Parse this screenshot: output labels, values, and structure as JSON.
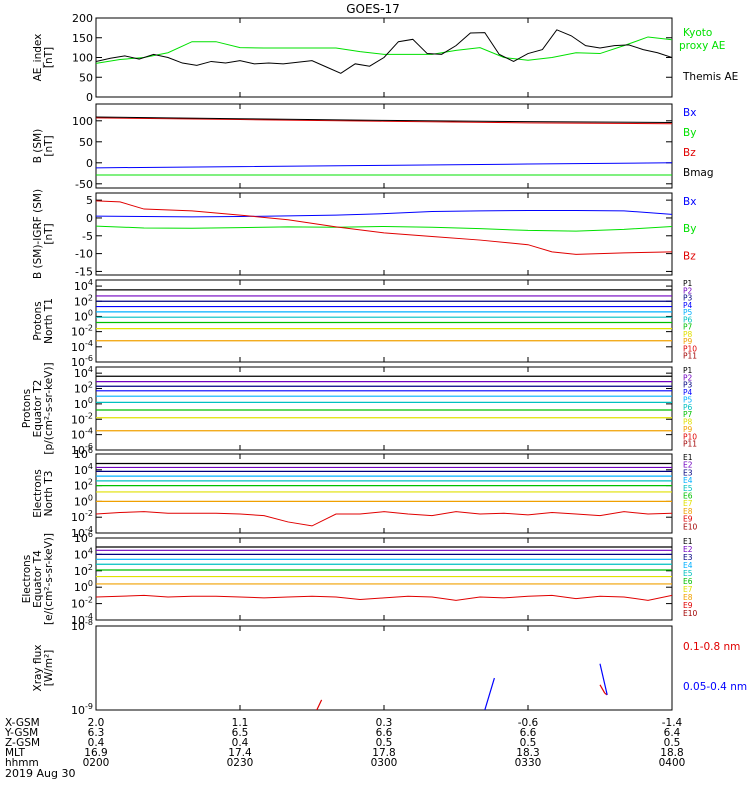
{
  "title": "GOES-17",
  "colors": {
    "black": "#000000",
    "green": "#00e000",
    "blue": "#0000ff",
    "red": "#e00000",
    "navy": "#000080",
    "purple": "#7000c0",
    "cyan": "#00b0ff",
    "teal": "#00c0c0",
    "seafoam": "#40e0a0",
    "lime": "#00c000",
    "yellow": "#e0e000",
    "orange": "#f0a000",
    "darkred": "#a00000"
  },
  "x_axis": {
    "hhmm_ticks": [
      "0200",
      "0230",
      "0300",
      "0330",
      "0400"
    ],
    "rows": [
      {
        "label": "X-GSM",
        "values": [
          "2.0",
          "1.1",
          "0.3",
          "-0.6",
          "-1.4"
        ]
      },
      {
        "label": "Y-GSM",
        "values": [
          "6.3",
          "6.5",
          "6.6",
          "6.6",
          "6.4"
        ]
      },
      {
        "label": "Z-GSM",
        "values": [
          "0.4",
          "0.4",
          "0.5",
          "0.5",
          "0.5"
        ]
      },
      {
        "label": "MLT",
        "values": [
          "16.9",
          "17.4",
          "17.8",
          "18.3",
          "18.8"
        ]
      },
      {
        "label": "hhmm",
        "values": [
          "0200",
          "0230",
          "0300",
          "0330",
          "0400"
        ]
      }
    ],
    "date": "2019 Aug 30"
  },
  "chart_data": [
    {
      "type": "line",
      "ylabel": [
        "AE_index",
        "[nT]"
      ],
      "ylim": [
        0,
        200
      ],
      "yticks": [
        "0",
        "50",
        "100",
        "150",
        "200"
      ],
      "series": [
        {
          "name": "Kyoto proxy AE",
          "color": "#00e000",
          "x": [
            0,
            5,
            10,
            15,
            20,
            25,
            30,
            35,
            40,
            45,
            50,
            55,
            60,
            65,
            70,
            75,
            80,
            85,
            90,
            95,
            100,
            105,
            110,
            115,
            120
          ],
          "y": [
            85,
            95,
            100,
            112,
            140,
            140,
            125,
            124,
            124,
            124,
            124,
            115,
            108,
            108,
            108,
            118,
            125,
            100,
            93,
            100,
            112,
            110,
            130,
            152,
            145
          ]
        },
        {
          "name": "Themis AE",
          "color": "#000000",
          "x": [
            0,
            3,
            6,
            9,
            12,
            15,
            18,
            21,
            24,
            27,
            30,
            33,
            36,
            39,
            42,
            45,
            48,
            51,
            54,
            57,
            60,
            63,
            66,
            69,
            72,
            75,
            78,
            81,
            84,
            87,
            90,
            93,
            96,
            99,
            102,
            105,
            108,
            111,
            114,
            117,
            120
          ],
          "y": [
            90,
            98,
            104,
            96,
            108,
            100,
            86,
            80,
            90,
            86,
            92,
            84,
            86,
            84,
            88,
            92,
            76,
            60,
            84,
            78,
            100,
            140,
            146,
            110,
            108,
            130,
            162,
            163,
            108,
            90,
            110,
            120,
            170,
            155,
            130,
            124,
            130,
            132,
            120,
            112,
            100
          ]
        }
      ]
    },
    {
      "type": "line",
      "ylabel": [
        "B (SM)",
        "[nT]"
      ],
      "ylim": [
        -60,
        140
      ],
      "yticks": [
        "-50",
        "0",
        "50",
        "100"
      ],
      "series": [
        {
          "name": "Bx",
          "color": "#0000ff",
          "x": [
            0,
            30,
            60,
            90,
            120
          ],
          "y": [
            -12,
            -9,
            -6,
            -3,
            0
          ]
        },
        {
          "name": "By",
          "color": "#00e000",
          "x": [
            0,
            30,
            60,
            90,
            120
          ],
          "y": [
            -29,
            -29,
            -29,
            -29,
            -29
          ]
        },
        {
          "name": "Bz",
          "color": "#e00000",
          "x": [
            0,
            30,
            60,
            90,
            120
          ],
          "y": [
            107,
            103,
            99,
            95,
            93
          ]
        },
        {
          "name": "Bmag",
          "color": "#000000",
          "x": [
            0,
            30,
            60,
            90,
            120
          ],
          "y": [
            109,
            105,
            101,
            98,
            96
          ]
        }
      ]
    },
    {
      "type": "line",
      "ylabel": [
        "B (SM)-IGRF (SM)",
        "[nT]"
      ],
      "ylim": [
        -16,
        7
      ],
      "yticks": [
        "-15",
        "-10",
        "-5",
        "0",
        "5"
      ],
      "series": [
        {
          "name": "Bx",
          "color": "#0000ff",
          "x": [
            0,
            10,
            20,
            30,
            40,
            50,
            60,
            70,
            80,
            90,
            100,
            110,
            120
          ],
          "y": [
            0.5,
            0.4,
            0.3,
            0.4,
            0.6,
            0.8,
            1.2,
            1.8,
            2.0,
            2.1,
            2.1,
            2.0,
            1.0
          ]
        },
        {
          "name": "By",
          "color": "#00e000",
          "x": [
            0,
            10,
            20,
            30,
            40,
            50,
            60,
            70,
            80,
            90,
            100,
            110,
            120
          ],
          "y": [
            -2.3,
            -2.8,
            -2.9,
            -2.7,
            -2.5,
            -2.6,
            -2.4,
            -2.6,
            -3.0,
            -3.5,
            -3.7,
            -3.2,
            -2.4
          ]
        },
        {
          "name": "Bz",
          "color": "#e00000",
          "x": [
            0,
            5,
            10,
            20,
            30,
            40,
            50,
            60,
            70,
            80,
            90,
            95,
            100,
            110,
            120
          ],
          "y": [
            4.8,
            4.5,
            2.5,
            2.0,
            0.8,
            -0.5,
            -2.5,
            -4.2,
            -5.2,
            -6.2,
            -7.5,
            -9.5,
            -10.2,
            -9.8,
            -9.5
          ]
        }
      ]
    },
    {
      "type": "line",
      "ylabel": [
        "Protons",
        "North T1"
      ],
      "scale": "log",
      "ylim_exp": [
        -6,
        4.8
      ],
      "yticks": [
        "10^4",
        "10^2",
        "10^0",
        "10^-2",
        "10^-4",
        "10^-6"
      ],
      "series": [
        {
          "name": "P1",
          "color": "#000000",
          "log10": 3.5
        },
        {
          "name": "P2",
          "color": "#7000c0",
          "log10": 2.7
        },
        {
          "name": "P3",
          "color": "#000080",
          "log10": 2.0
        },
        {
          "name": "P4",
          "color": "#0000ff",
          "log10": 1.3
        },
        {
          "name": "P5",
          "color": "#00b0ff",
          "log10": 0.6
        },
        {
          "name": "P6",
          "color": "#00c0c0",
          "log10": -0.1
        },
        {
          "name": "P7",
          "color": "#00c000",
          "log10": -0.8
        },
        {
          "name": "P8",
          "color": "#e0e000",
          "log10": -1.6
        },
        {
          "name": "P9",
          "color": "#f0a000",
          "log10": -3.2
        },
        {
          "name": "P10",
          "color": "#e00000",
          "log10": null
        },
        {
          "name": "P11",
          "color": "#a00000",
          "log10": null
        }
      ]
    },
    {
      "type": "line",
      "ylabel": [
        "Protons",
        "Equator T2",
        "[p/(cm²-s-sr-keV)]"
      ],
      "scale": "log",
      "ylim_exp": [
        -6,
        4.8
      ],
      "yticks": [
        "10^4",
        "10^2",
        "10^0",
        "10^-2",
        "10^-4",
        "10^-6"
      ],
      "series": [
        {
          "name": "P1",
          "color": "#000000",
          "log10": 3.6
        },
        {
          "name": "P2",
          "color": "#7000c0",
          "log10": 2.9
        },
        {
          "name": "P3",
          "color": "#000080",
          "log10": 2.3
        },
        {
          "name": "P4",
          "color": "#0000ff",
          "log10": 1.7
        },
        {
          "name": "P5",
          "color": "#00b0ff",
          "log10": 1.0
        },
        {
          "name": "P6",
          "color": "#00c0c0",
          "log10": 0.2
        },
        {
          "name": "P7",
          "color": "#00c000",
          "log10": -0.8
        },
        {
          "name": "P8",
          "color": "#e0e000",
          "log10": -1.8
        },
        {
          "name": "P9",
          "color": "#f0a000",
          "log10": -3.5
        },
        {
          "name": "P10",
          "color": "#e00000",
          "log10": null
        },
        {
          "name": "P11",
          "color": "#a00000",
          "log10": null
        }
      ]
    },
    {
      "type": "line",
      "ylabel": [
        "Electrons",
        "North T3"
      ],
      "scale": "log",
      "ylim_exp": [
        -4,
        6
      ],
      "yticks": [
        "10^6",
        "10^4",
        "10^2",
        "10^0",
        "10^-2",
        "10^-4"
      ],
      "series": [
        {
          "name": "E1",
          "color": "#000000",
          "log10": 4.8
        },
        {
          "name": "E2",
          "color": "#7000c0",
          "log10": 4.3
        },
        {
          "name": "E3",
          "color": "#000080",
          "log10": 3.8
        },
        {
          "name": "E4",
          "color": "#00b0ff",
          "log10": 3.2
        },
        {
          "name": "E5",
          "color": "#00c0c0",
          "log10": 2.6
        },
        {
          "name": "E6",
          "color": "#00c000",
          "log10": 2.0
        },
        {
          "name": "E7",
          "color": "#e0e000",
          "log10": 1.2
        },
        {
          "name": "E8",
          "color": "#f0a000",
          "log10": 0.0
        },
        {
          "name": "E9",
          "color": "#e00000",
          "x": [
            0,
            5,
            10,
            15,
            20,
            25,
            30,
            35,
            40,
            45,
            50,
            55,
            60,
            65,
            70,
            75,
            80,
            85,
            90,
            95,
            100,
            105,
            110,
            115,
            120
          ],
          "log10": [
            -1.6,
            -1.4,
            -1.3,
            -1.5,
            -1.5,
            -1.5,
            -1.6,
            -1.8,
            -2.6,
            -3.1,
            -1.6,
            -1.6,
            -1.3,
            -1.6,
            -1.8,
            -1.3,
            -1.6,
            -1.5,
            -1.7,
            -1.4,
            -1.6,
            -1.8,
            -1.3,
            -1.6,
            -1.5
          ]
        },
        {
          "name": "E10",
          "color": "#a00000",
          "log10": null
        }
      ]
    },
    {
      "type": "line",
      "ylabel": [
        "Electrons",
        "Equator T4",
        "[e/(cm²-s-sr-keV)]"
      ],
      "scale": "log",
      "ylim_exp": [
        -4,
        6
      ],
      "yticks": [
        "10^6",
        "10^4",
        "10^2",
        "10^0",
        "10^-2",
        "10^-4"
      ],
      "series": [
        {
          "name": "E1",
          "color": "#000000",
          "log10": 4.9
        },
        {
          "name": "E2",
          "color": "#7000c0",
          "log10": 4.5
        },
        {
          "name": "E3",
          "color": "#000080",
          "log10": 4.0
        },
        {
          "name": "E4",
          "color": "#00b0ff",
          "log10": 3.4
        },
        {
          "name": "E5",
          "color": "#00c0c0",
          "log10": 2.8
        },
        {
          "name": "E6",
          "color": "#00c000",
          "log10": 2.1
        },
        {
          "name": "E7",
          "color": "#e0e000",
          "log10": 1.3
        },
        {
          "name": "E8",
          "color": "#f0a000",
          "log10": 0.4
        },
        {
          "name": "E9",
          "color": "#e00000",
          "x": [
            0,
            5,
            10,
            15,
            20,
            25,
            30,
            35,
            40,
            45,
            50,
            55,
            60,
            65,
            70,
            75,
            80,
            85,
            90,
            95,
            100,
            105,
            110,
            115,
            120
          ],
          "log10": [
            -1.2,
            -1.1,
            -1.0,
            -1.2,
            -1.1,
            -1.1,
            -1.2,
            -1.3,
            -1.2,
            -1.1,
            -1.2,
            -1.5,
            -1.3,
            -1.1,
            -1.2,
            -1.6,
            -1.2,
            -1.3,
            -1.1,
            -1.0,
            -1.4,
            -1.1,
            -1.2,
            -1.6,
            -1.0
          ]
        },
        {
          "name": "E10",
          "color": "#a00000",
          "log10": null
        }
      ]
    },
    {
      "type": "line",
      "ylabel": [
        "Xray flux",
        "[W/m²]"
      ],
      "scale": "log",
      "ylim_exp": [
        -9,
        -8
      ],
      "yticks": [
        "10^-8",
        "10^-9"
      ],
      "series": [
        {
          "name": "0.1-0.8 nm",
          "color": "#e00000",
          "segments": [
            [
              [
                46,
                -9.0
              ],
              [
                47,
                -8.88
              ]
            ],
            [
              [
                105,
                -8.7
              ],
              [
                106,
                -8.8
              ]
            ],
            [
              [
                106,
                -8.8
              ],
              [
                106.5,
                -8.82
              ]
            ]
          ]
        },
        {
          "name": "0.05-0.4 nm",
          "color": "#0000ff",
          "segments": [
            [
              [
                81,
                -9.0
              ],
              [
                83,
                -8.62
              ]
            ],
            [
              [
                105,
                -8.45
              ],
              [
                106.5,
                -8.82
              ]
            ],
            [
              [
                142,
                -8.42
              ],
              [
                144,
                -8.47
              ]
            ]
          ]
        }
      ]
    }
  ]
}
